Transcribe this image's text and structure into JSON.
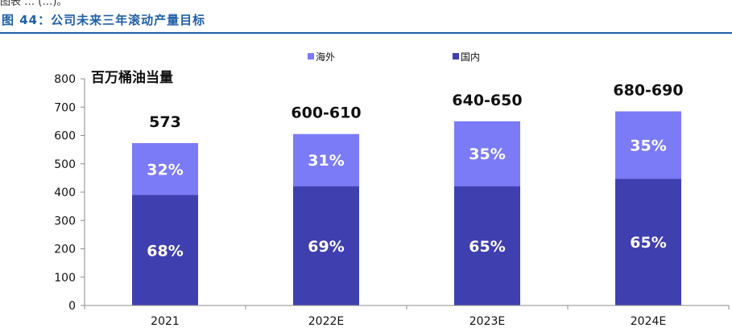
{
  "figure": {
    "title": "图 44：公司未来三年滚动产量目标",
    "clipped_text": "图表 … (…)。"
  },
  "colors": {
    "overseas": "#7b7bf7",
    "domestic": "#3f3fb0",
    "title": "#1f5fa8"
  },
  "chart_data": {
    "type": "bar",
    "stacked": true,
    "unit_label": "百万桶油当量",
    "categories": [
      "2021",
      "2022E",
      "2023E",
      "2024E"
    ],
    "series": [
      {
        "name": "国内",
        "values": [
          390,
          421,
          421,
          447
        ],
        "labels": [
          "68%",
          "69%",
          "65%",
          "65%"
        ]
      },
      {
        "name": "海外",
        "values": [
          183,
          184,
          229,
          238
        ],
        "labels": [
          "32%",
          "31%",
          "35%",
          "35%"
        ]
      }
    ],
    "total_labels": [
      "573",
      "600-610",
      "640-650",
      "680-690"
    ],
    "legend": [
      "海外",
      "国内"
    ],
    "legend_position": "top",
    "y_ticks": [
      0,
      100,
      200,
      300,
      400,
      500,
      600,
      700,
      800
    ],
    "ylim": [
      0,
      800
    ],
    "grid": false
  }
}
